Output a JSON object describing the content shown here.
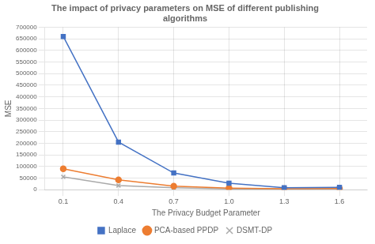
{
  "chart_data": {
    "type": "line",
    "title": "The impact of privacy parameters on MSE of different publishing\nalgorithms",
    "xlabel": "The Privacy Budget Parameter",
    "ylabel": "MSE",
    "x": [
      0.1,
      0.4,
      0.7,
      1.0,
      1.3,
      1.6
    ],
    "series": [
      {
        "name": "Laplace",
        "color": "#4472C4",
        "marker": "square",
        "values": [
          660000,
          205000,
          72000,
          28000,
          8000,
          10000
        ]
      },
      {
        "name": "PCA-based PPDP",
        "color": "#ED7D31",
        "marker": "circle",
        "values": [
          90000,
          42000,
          15000,
          7000,
          4000,
          5000
        ]
      },
      {
        "name": "DSMT-DP",
        "color": "#AAAAAA",
        "marker": "x",
        "values": [
          55000,
          18000,
          8000,
          3000,
          2000,
          3000
        ]
      }
    ],
    "xlim": [
      0.0,
      1.75
    ],
    "xticks": [
      0.1,
      0.4,
      0.7,
      {
        "value": 1.0,
        "label": "1.0"
      },
      1.3,
      1.6
    ],
    "ylim": [
      0,
      700000
    ],
    "yticks": [
      0,
      50000,
      100000,
      150000,
      200000,
      250000,
      300000,
      350000,
      400000,
      450000,
      500000,
      550000,
      600000,
      650000,
      700000
    ],
    "grid": true,
    "legend": "bottom"
  }
}
